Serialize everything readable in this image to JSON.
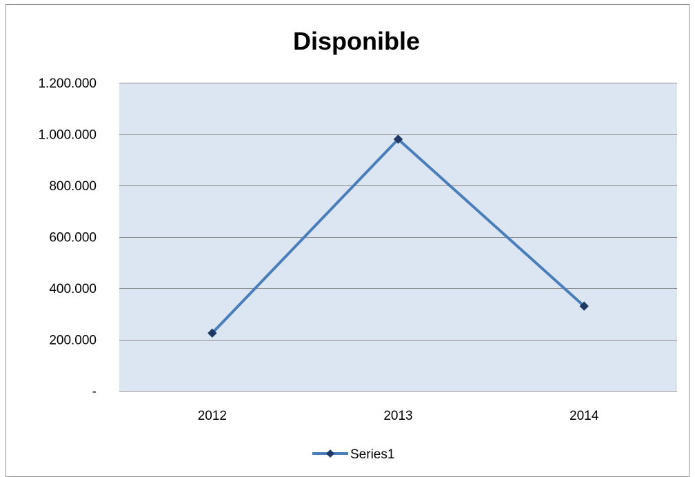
{
  "chart_data": {
    "type": "line",
    "title": "Disponible",
    "xlabel": "",
    "ylabel": "",
    "categories": [
      "2012",
      "2013",
      "2014"
    ],
    "series": [
      {
        "name": "Series1",
        "values": [
          225000,
          980000,
          330000
        ]
      }
    ],
    "ylim": [
      0,
      1200000
    ],
    "y_ticks": [
      0,
      200000,
      400000,
      600000,
      800000,
      1000000,
      1200000
    ],
    "y_tick_labels": [
      "-",
      "200.000",
      "400.000",
      "600.000",
      "800.000",
      "1.000.000",
      "1.200.000"
    ],
    "grid": true,
    "legend_position": "bottom",
    "colors": {
      "plot_background": "#dce6f2",
      "line": "#4a7ebb",
      "marker": "#1f3864",
      "gridline": "#8c8c8c"
    },
    "marker": "diamond"
  }
}
